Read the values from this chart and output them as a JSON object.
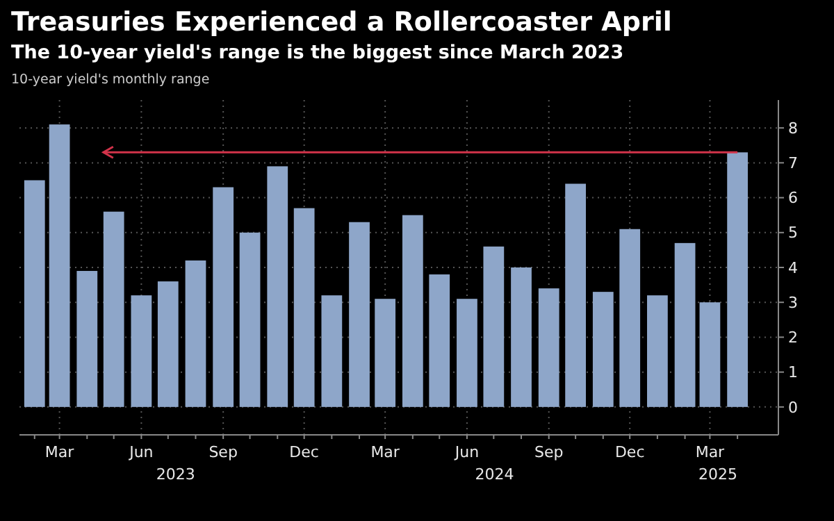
{
  "chart_data": {
    "type": "bar",
    "title": "Treasuries Experienced a Rollercoaster April",
    "subtitle": "The 10-year yield's range is the biggest since March 2023",
    "ylabel": "10-year yield's monthly range",
    "x": [
      "2023-02",
      "2023-03",
      "2023-04",
      "2023-05",
      "2023-06",
      "2023-07",
      "2023-08",
      "2023-09",
      "2023-10",
      "2023-11",
      "2023-12",
      "2024-01",
      "2024-02",
      "2024-03",
      "2024-04",
      "2024-05",
      "2024-06",
      "2024-07",
      "2024-08",
      "2024-09",
      "2024-10",
      "2024-11",
      "2024-12",
      "2025-01",
      "2025-02",
      "2025-03",
      "2025-04"
    ],
    "values": [
      6.5,
      8.1,
      3.9,
      5.6,
      3.2,
      3.6,
      4.2,
      6.3,
      5.0,
      6.9,
      5.7,
      3.2,
      5.3,
      3.1,
      5.5,
      3.8,
      3.1,
      4.6,
      4.0,
      3.4,
      6.4,
      3.3,
      5.1,
      3.2,
      4.7,
      3.0,
      7.3
    ],
    "color": "#8ea6c9",
    "ylim": [
      -0.8,
      8.8
    ],
    "yticks": [
      0,
      1,
      2,
      3,
      4,
      5,
      6,
      7,
      8
    ],
    "xticks": [
      {
        "value": "2023-03",
        "label": "Mar"
      },
      {
        "value": "2023-06",
        "label": "Jun"
      },
      {
        "value": "2023-09",
        "label": "Sep"
      },
      {
        "value": "2023-12",
        "label": "Dec"
      },
      {
        "value": "2024-03",
        "label": "Mar"
      },
      {
        "value": "2024-06",
        "label": "Jun"
      },
      {
        "value": "2024-09",
        "label": "Sep"
      },
      {
        "value": "2024-12",
        "label": "Dec"
      },
      {
        "value": "2025-03",
        "label": "Mar"
      }
    ],
    "xlim": [
      "2023-01-15",
      "2025-05-17"
    ],
    "annotations": [
      "2023",
      "2024",
      "2025"
    ],
    "ref_lines": [
      {
        "axis": "y",
        "value": 7.3,
        "color": "#d2334a"
      }
    ],
    "grid": true
  }
}
